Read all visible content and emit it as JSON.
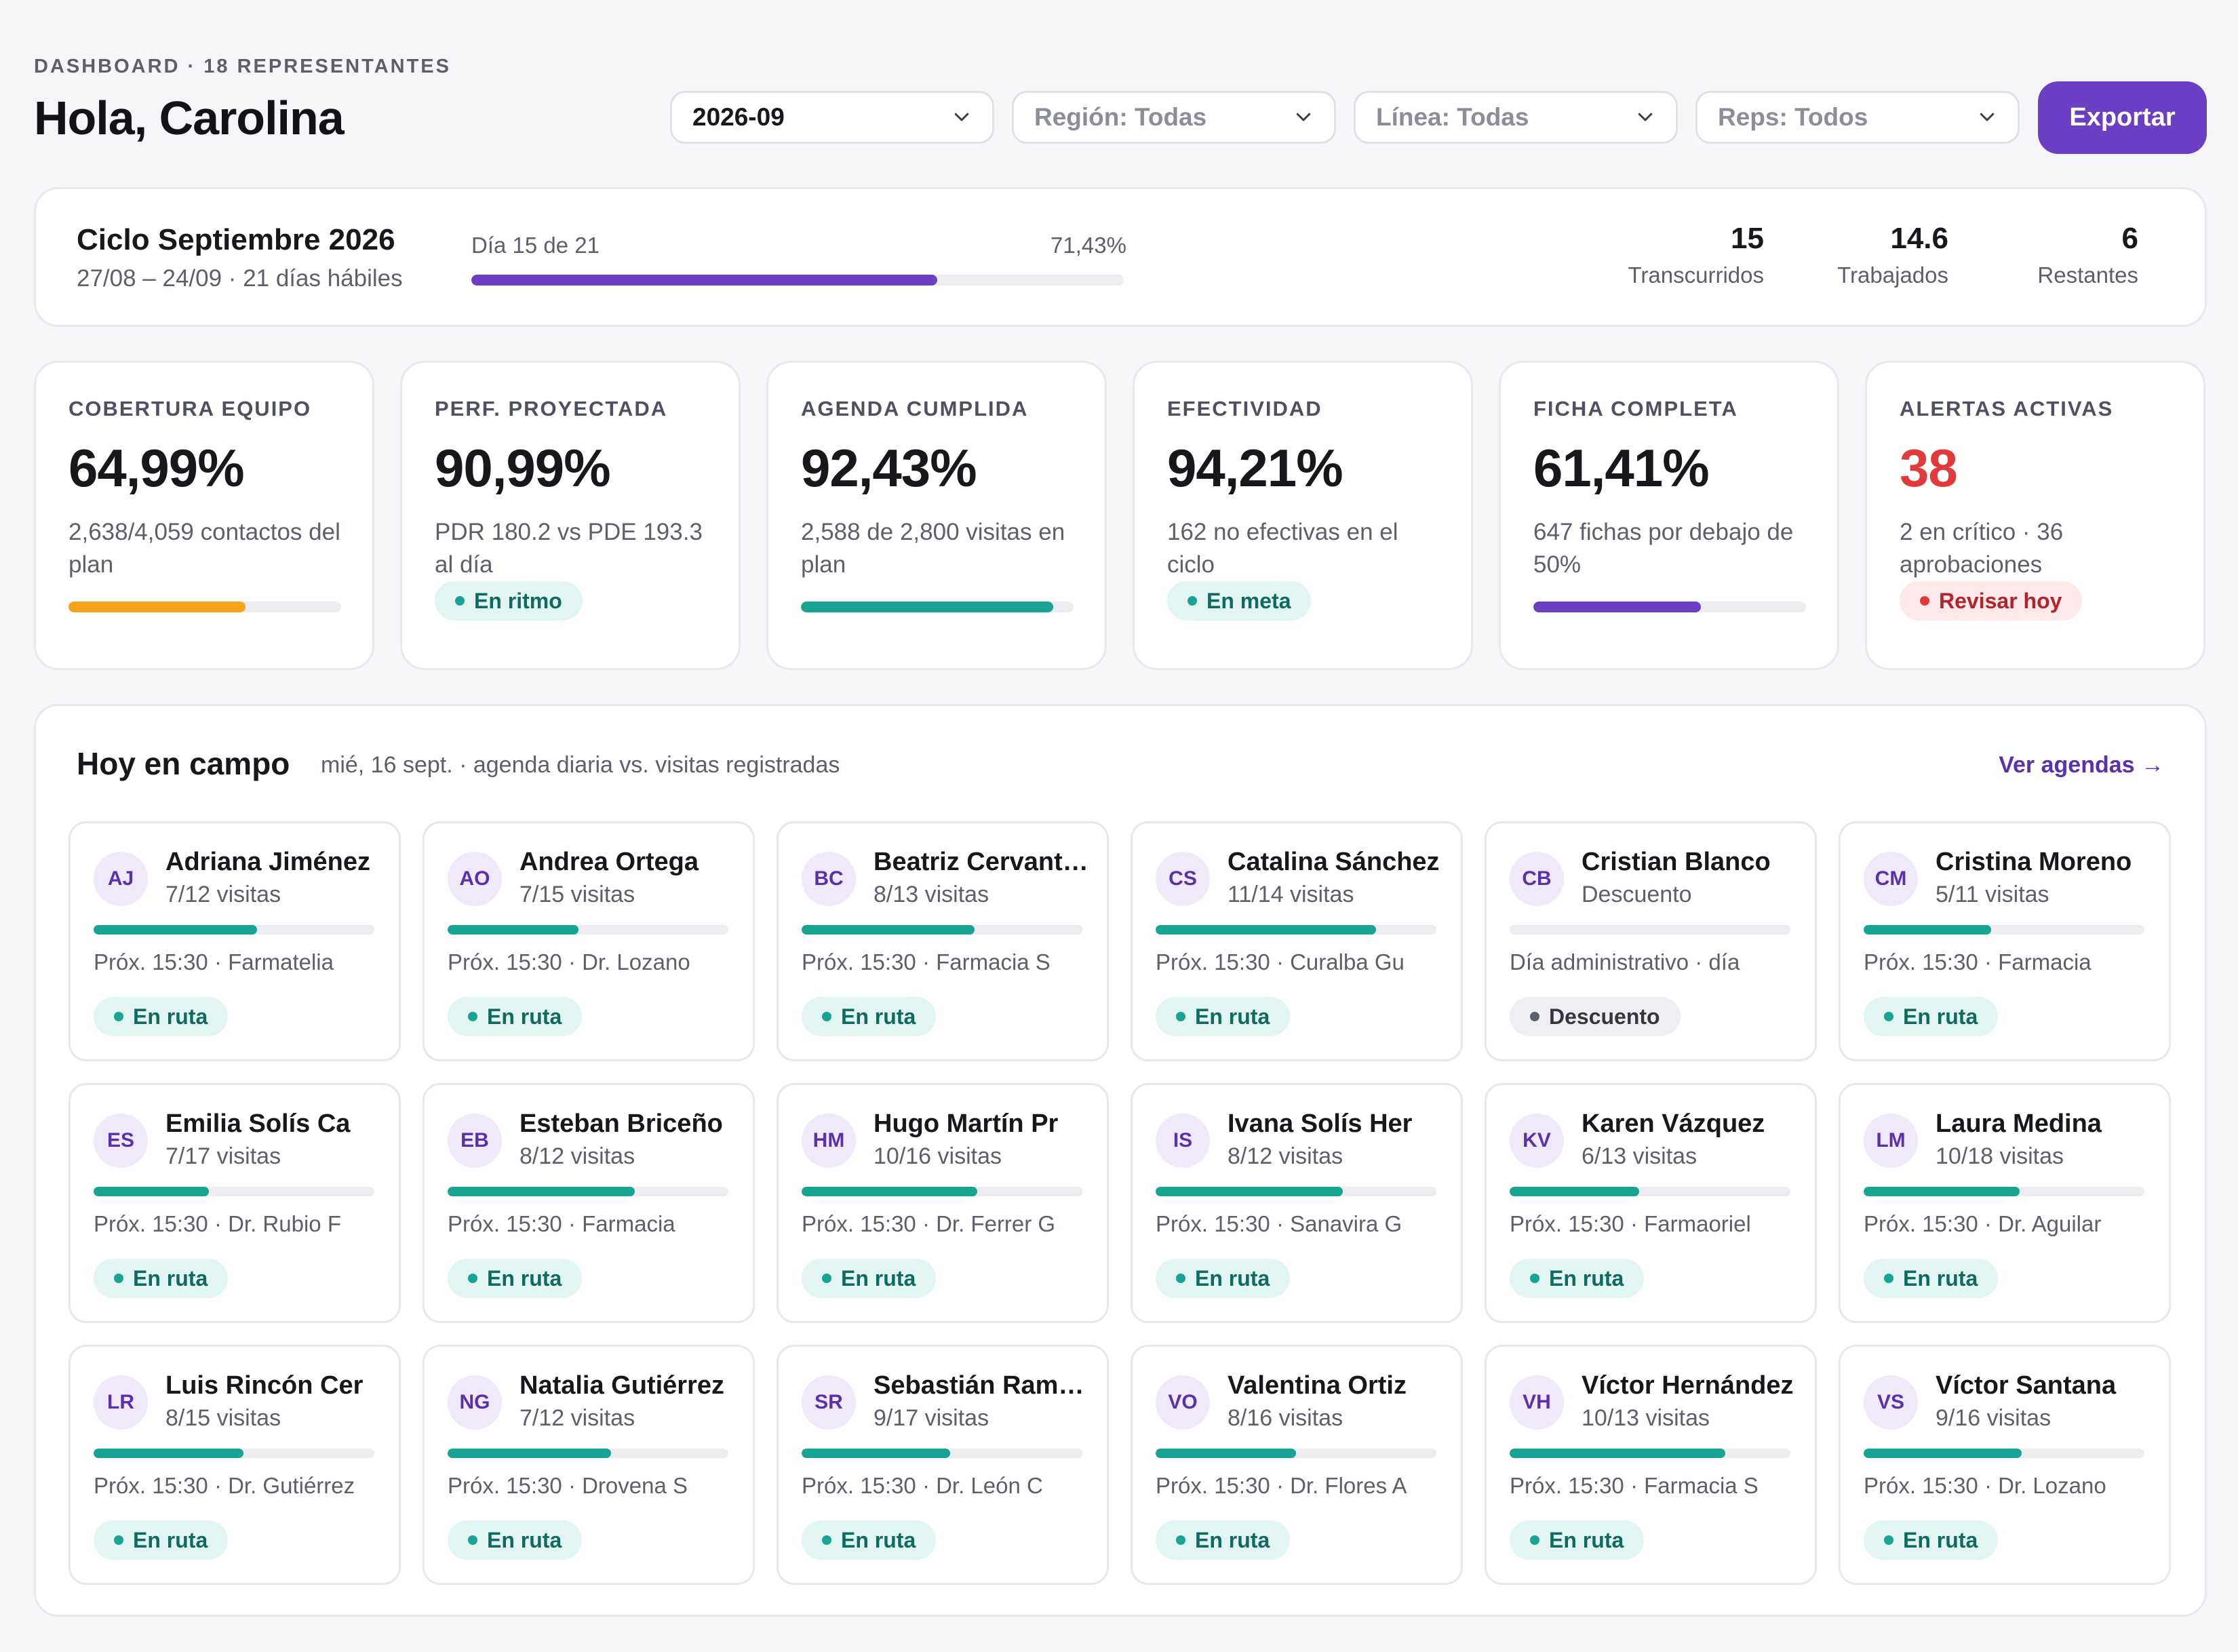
{
  "header": {
    "eyebrow": "DASHBOARD · 18 REPRESENTANTES",
    "greeting": "Hola, Carolina",
    "filters": [
      {
        "value": "2026-09",
        "active": true
      },
      {
        "value": "Región: Todas",
        "active": false
      },
      {
        "value": "Línea: Todas",
        "active": false
      },
      {
        "value": "Reps: Todos",
        "active": false
      }
    ],
    "export_label": "Exportar"
  },
  "cycle": {
    "title": "Ciclo Septiembre 2026",
    "dates": "27/08 – 24/09 · 21 días hábiles",
    "day_label": "Día 15 de 21",
    "percent_label": "71,43%",
    "progress": 0.7143,
    "stats": [
      {
        "value": "15",
        "label": "Transcurridos"
      },
      {
        "value": "14.6",
        "label": "Trabajados"
      },
      {
        "value": "6",
        "label": "Restantes"
      }
    ]
  },
  "kpis": [
    {
      "label": "COBERTURA EQUIPO",
      "value": "64,99%",
      "desc": "2,638/4,059 contactos del plan",
      "progress": 0.6499,
      "bar_color": "#f5a31a"
    },
    {
      "label": "PERF. PROYECTADA",
      "value": "90,99%",
      "desc": "PDR 180.2 vs PDE 193.3 al día",
      "pill": "En ritmo",
      "pill_type": "green"
    },
    {
      "label": "AGENDA CUMPLIDA",
      "value": "92,43%",
      "desc": "2,588 de 2,800 visitas en plan",
      "progress": 0.9243,
      "bar_color": "#17a493"
    },
    {
      "label": "EFECTIVIDAD",
      "value": "94,21%",
      "desc": "162 no efectivas en el ciclo",
      "pill": "En meta",
      "pill_type": "green"
    },
    {
      "label": "FICHA COMPLETA",
      "value": "61,41%",
      "desc": "647 fichas por debajo de 50%",
      "progress": 0.6141,
      "bar_color": "#6b3fc4"
    },
    {
      "label": "ALERTAS ACTIVAS",
      "value": "38",
      "value_color": "#e23a3a",
      "desc": "2 en crítico · 36 aprobaciones",
      "pill": "Revisar hoy",
      "pill_type": "red"
    }
  ],
  "field": {
    "title": "Hoy en campo",
    "subtitle": "mié, 16 sept. · agenda diaria vs. visitas registradas",
    "link": "Ver agendas →",
    "reps": [
      {
        "initials": "AJ",
        "name": "Adriana Jiménez",
        "visits": "7/12 visitas",
        "progress": 0.5833,
        "next": "Próx. 15:30 · Farmatelia",
        "status": "En ruta",
        "status_type": "green"
      },
      {
        "initials": "AO",
        "name": "Andrea Ortega",
        "visits": "7/15 visitas",
        "progress": 0.4667,
        "next": "Próx. 15:30 · Dr. Lozano",
        "status": "En ruta",
        "status_type": "green"
      },
      {
        "initials": "BC",
        "name": "Beatriz Cervantes",
        "visits": "8/13 visitas",
        "progress": 0.6154,
        "next": "Próx. 15:30 · Farmacia S",
        "status": "En ruta",
        "status_type": "green"
      },
      {
        "initials": "CS",
        "name": "Catalina Sánchez",
        "visits": "11/14 visitas",
        "progress": 0.7857,
        "next": "Próx. 15:30 · Curalba Gu",
        "status": "En ruta",
        "status_type": "green"
      },
      {
        "initials": "CB",
        "name": "Cristian Blanco",
        "visits": "Descuento",
        "progress": 0,
        "next": "Día administrativo · día",
        "status": "Descuento",
        "status_type": "gray"
      },
      {
        "initials": "CM",
        "name": "Cristina Moreno",
        "visits": "5/11 visitas",
        "progress": 0.4545,
        "next": "Próx. 15:30 · Farmacia",
        "status": "En ruta",
        "status_type": "green"
      },
      {
        "initials": "ES",
        "name": "Emilia Solís Ca",
        "visits": "7/17 visitas",
        "progress": 0.4118,
        "next": "Próx. 15:30 · Dr. Rubio F",
        "status": "En ruta",
        "status_type": "green"
      },
      {
        "initials": "EB",
        "name": "Esteban Briceño",
        "visits": "8/12 visitas",
        "progress": 0.6667,
        "next": "Próx. 15:30 · Farmacia",
        "status": "En ruta",
        "status_type": "green"
      },
      {
        "initials": "HM",
        "name": "Hugo Martín Pr",
        "visits": "10/16 visitas",
        "progress": 0.625,
        "next": "Próx. 15:30 · Dr. Ferrer G",
        "status": "En ruta",
        "status_type": "green"
      },
      {
        "initials": "IS",
        "name": "Ivana Solís Her",
        "visits": "8/12 visitas",
        "progress": 0.6667,
        "next": "Próx. 15:30 · Sanavira G",
        "status": "En ruta",
        "status_type": "green"
      },
      {
        "initials": "KV",
        "name": "Karen Vázquez",
        "visits": "6/13 visitas",
        "progress": 0.4615,
        "next": "Próx. 15:30 · Farmaoriel",
        "status": "En ruta",
        "status_type": "green"
      },
      {
        "initials": "LM",
        "name": "Laura Medina",
        "visits": "10/18 visitas",
        "progress": 0.5556,
        "next": "Próx. 15:30 · Dr. Aguilar",
        "status": "En ruta",
        "status_type": "green"
      },
      {
        "initials": "LR",
        "name": "Luis Rincón Cer",
        "visits": "8/15 visitas",
        "progress": 0.5333,
        "next": "Próx. 15:30 · Dr. Gutiérrez",
        "status": "En ruta",
        "status_type": "green"
      },
      {
        "initials": "NG",
        "name": "Natalia Gutiérrez",
        "visits": "7/12 visitas",
        "progress": 0.5833,
        "next": "Próx. 15:30 · Drovena S",
        "status": "En ruta",
        "status_type": "green"
      },
      {
        "initials": "SR",
        "name": "Sebastián Ramírez",
        "visits": "9/17 visitas",
        "progress": 0.5294,
        "next": "Próx. 15:30 · Dr. León C",
        "status": "En ruta",
        "status_type": "green"
      },
      {
        "initials": "VO",
        "name": "Valentina Ortiz",
        "visits": "8/16 visitas",
        "progress": 0.5,
        "next": "Próx. 15:30 · Dr. Flores A",
        "status": "En ruta",
        "status_type": "green"
      },
      {
        "initials": "VH",
        "name": "Víctor Hernández",
        "visits": "10/13 visitas",
        "progress": 0.7692,
        "next": "Próx. 15:30 · Farmacia S",
        "status": "En ruta",
        "status_type": "green"
      },
      {
        "initials": "VS",
        "name": "Víctor Santana",
        "visits": "9/16 visitas",
        "progress": 0.5625,
        "next": "Próx. 15:30 · Dr. Lozano",
        "status": "En ruta",
        "status_type": "green"
      }
    ]
  }
}
